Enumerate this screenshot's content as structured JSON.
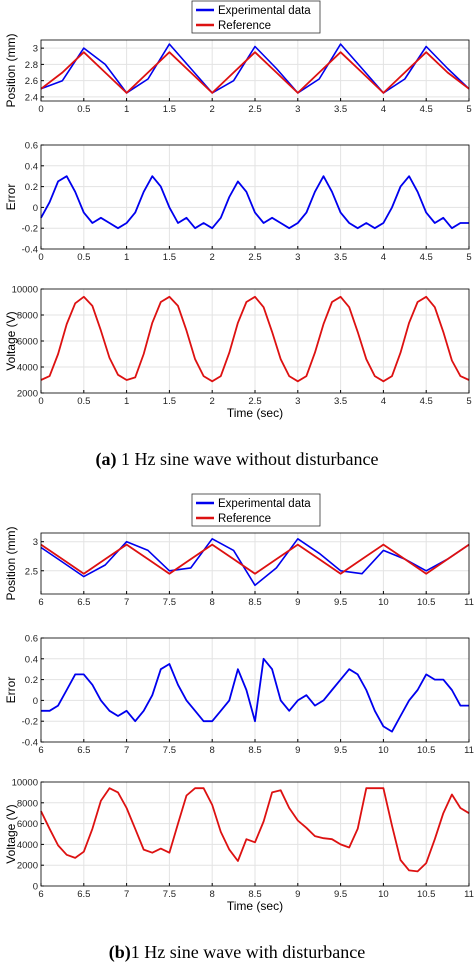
{
  "legend": {
    "experimental": "Experimental data",
    "reference": "Reference"
  },
  "colors": {
    "experimental": "#0000ee",
    "reference": "#dd1111",
    "grid": "#e3e3e3",
    "axis": "#000000"
  },
  "captions": {
    "a_label": "(a)",
    "a_text": " 1 Hz sine wave without disturbance",
    "b_label": "(b)",
    "b_text": "1 Hz sine wave with disturbance"
  },
  "chart_data": [
    {
      "type": "line",
      "panel": "a-position",
      "xlabel": "",
      "ylabel": "Position (mm)",
      "xlim": [
        0,
        5
      ],
      "ylim": [
        2.35,
        3.1
      ],
      "xticks": [
        "0",
        "0.5",
        "1",
        "1.5",
        "2",
        "2.5",
        "3",
        "3.5",
        "4",
        "4.5",
        "5"
      ],
      "yticks": [
        "2.4",
        "2.6",
        "2.8",
        "3"
      ],
      "series": [
        {
          "name": "Experimental data",
          "x": [
            0,
            0.25,
            0.5,
            0.75,
            1,
            1.25,
            1.5,
            1.75,
            2,
            2.25,
            2.5,
            2.75,
            3,
            3.25,
            3.5,
            3.75,
            4,
            4.25,
            4.5,
            4.75,
            5
          ],
          "values": [
            2.5,
            2.6,
            3.0,
            2.8,
            2.45,
            2.62,
            3.05,
            2.75,
            2.45,
            2.6,
            3.02,
            2.75,
            2.45,
            2.62,
            3.05,
            2.75,
            2.45,
            2.62,
            3.02,
            2.75,
            2.5
          ]
        },
        {
          "name": "Reference",
          "x": [
            0,
            0.25,
            0.5,
            0.75,
            1,
            1.25,
            1.5,
            1.75,
            2,
            2.25,
            2.5,
            2.75,
            3,
            3.25,
            3.5,
            3.75,
            4,
            4.25,
            4.5,
            4.75,
            5
          ],
          "values": [
            2.5,
            2.7,
            2.95,
            2.7,
            2.45,
            2.7,
            2.95,
            2.7,
            2.45,
            2.7,
            2.95,
            2.7,
            2.45,
            2.7,
            2.95,
            2.7,
            2.45,
            2.7,
            2.95,
            2.7,
            2.5
          ]
        }
      ]
    },
    {
      "type": "line",
      "panel": "a-error",
      "xlabel": "",
      "ylabel": "Error",
      "xlim": [
        0,
        5
      ],
      "ylim": [
        -0.4,
        0.6
      ],
      "xticks": [
        "0",
        "0.5",
        "1",
        "1.5",
        "2",
        "2.5",
        "3",
        "3.5",
        "4",
        "4.5",
        "5"
      ],
      "yticks": [
        "-0.4",
        "-0.2",
        "0",
        "0.2",
        "0.4",
        "0.6"
      ],
      "series": [
        {
          "name": "Error",
          "x": [
            0,
            0.1,
            0.2,
            0.3,
            0.4,
            0.5,
            0.6,
            0.7,
            0.8,
            0.9,
            1,
            1.1,
            1.2,
            1.3,
            1.4,
            1.5,
            1.6,
            1.7,
            1.8,
            1.9,
            2,
            2.1,
            2.2,
            2.3,
            2.4,
            2.5,
            2.6,
            2.7,
            2.8,
            2.9,
            3,
            3.1,
            3.2,
            3.3,
            3.4,
            3.5,
            3.6,
            3.7,
            3.8,
            3.9,
            4,
            4.1,
            4.2,
            4.3,
            4.4,
            4.5,
            4.6,
            4.7,
            4.8,
            4.9,
            5
          ],
          "values": [
            -0.1,
            0.05,
            0.25,
            0.3,
            0.15,
            -0.05,
            -0.15,
            -0.1,
            -0.15,
            -0.2,
            -0.15,
            -0.05,
            0.15,
            0.3,
            0.2,
            0.0,
            -0.15,
            -0.1,
            -0.2,
            -0.15,
            -0.2,
            -0.1,
            0.1,
            0.25,
            0.15,
            -0.05,
            -0.15,
            -0.1,
            -0.15,
            -0.2,
            -0.15,
            -0.05,
            0.15,
            0.3,
            0.15,
            -0.05,
            -0.15,
            -0.2,
            -0.15,
            -0.2,
            -0.15,
            0.0,
            0.2,
            0.3,
            0.15,
            -0.05,
            -0.15,
            -0.1,
            -0.2,
            -0.15,
            -0.15
          ]
        }
      ]
    },
    {
      "type": "line",
      "panel": "a-voltage",
      "xlabel": "Time (sec)",
      "ylabel": "Voltage (V)",
      "xlim": [
        0,
        5
      ],
      "ylim": [
        2000,
        10000
      ],
      "xticks": [
        "0",
        "0.5",
        "1",
        "1.5",
        "2",
        "2.5",
        "3",
        "3.5",
        "4",
        "4.5",
        "5"
      ],
      "yticks": [
        "2000",
        "4000",
        "6000",
        "8000",
        "10000"
      ],
      "series": [
        {
          "name": "Voltage",
          "x": [
            0,
            0.1,
            0.2,
            0.3,
            0.4,
            0.5,
            0.6,
            0.7,
            0.8,
            0.9,
            1,
            1.1,
            1.2,
            1.3,
            1.4,
            1.5,
            1.6,
            1.7,
            1.8,
            1.9,
            2,
            2.1,
            2.2,
            2.3,
            2.4,
            2.5,
            2.6,
            2.7,
            2.8,
            2.9,
            3,
            3.1,
            3.2,
            3.3,
            3.4,
            3.5,
            3.6,
            3.7,
            3.8,
            3.9,
            4,
            4.1,
            4.2,
            4.3,
            4.4,
            4.5,
            4.6,
            4.7,
            4.8,
            4.9,
            5
          ],
          "values": [
            3000,
            3300,
            5000,
            7300,
            8900,
            9400,
            8700,
            6800,
            4700,
            3400,
            3000,
            3200,
            5000,
            7400,
            9000,
            9400,
            8700,
            6800,
            4600,
            3300,
            2900,
            3300,
            5100,
            7400,
            9000,
            9400,
            8600,
            6700,
            4600,
            3300,
            2900,
            3300,
            5100,
            7300,
            9000,
            9400,
            8600,
            6700,
            4600,
            3300,
            2900,
            3300,
            5100,
            7400,
            9000,
            9400,
            8600,
            6700,
            4500,
            3300,
            3000
          ]
        }
      ]
    },
    {
      "type": "line",
      "panel": "b-position",
      "xlabel": "",
      "ylabel": "Position (mm)",
      "xlim": [
        6,
        11
      ],
      "ylim": [
        2.1,
        3.15
      ],
      "xticks": [
        "6",
        "6.5",
        "7",
        "7.5",
        "8",
        "8.5",
        "9",
        "9.5",
        "10",
        "10.5",
        "11"
      ],
      "yticks": [
        "2.5",
        "3"
      ],
      "series": [
        {
          "name": "Experimental data",
          "x": [
            6,
            6.25,
            6.5,
            6.75,
            7,
            7.25,
            7.5,
            7.75,
            8,
            8.25,
            8.5,
            8.75,
            9,
            9.25,
            9.5,
            9.75,
            10,
            10.25,
            10.5,
            10.75,
            11
          ],
          "values": [
            2.9,
            2.65,
            2.4,
            2.6,
            3.0,
            2.85,
            2.5,
            2.55,
            3.05,
            2.85,
            2.25,
            2.55,
            3.05,
            2.8,
            2.5,
            2.45,
            2.85,
            2.7,
            2.5,
            2.7,
            2.95
          ]
        },
        {
          "name": "Reference",
          "x": [
            6,
            6.25,
            6.5,
            6.75,
            7,
            7.25,
            7.5,
            7.75,
            8,
            8.25,
            8.5,
            8.75,
            9,
            9.25,
            9.5,
            9.75,
            10,
            10.25,
            10.5,
            10.75,
            11
          ],
          "values": [
            2.95,
            2.7,
            2.45,
            2.7,
            2.95,
            2.7,
            2.45,
            2.7,
            2.95,
            2.7,
            2.45,
            2.7,
            2.95,
            2.7,
            2.45,
            2.7,
            2.95,
            2.7,
            2.45,
            2.7,
            2.95
          ]
        }
      ]
    },
    {
      "type": "line",
      "panel": "b-error",
      "xlabel": "",
      "ylabel": "Error",
      "xlim": [
        6,
        11
      ],
      "ylim": [
        -0.4,
        0.6
      ],
      "xticks": [
        "6",
        "6.5",
        "7",
        "7.5",
        "8",
        "8.5",
        "9",
        "9.5",
        "10",
        "10.5",
        "11"
      ],
      "yticks": [
        "-0.4",
        "-0.2",
        "0",
        "0.2",
        "0.4",
        "0.6"
      ],
      "series": [
        {
          "name": "Error",
          "x": [
            6,
            6.1,
            6.2,
            6.3,
            6.4,
            6.5,
            6.6,
            6.7,
            6.8,
            6.9,
            7,
            7.1,
            7.2,
            7.3,
            7.4,
            7.5,
            7.6,
            7.7,
            7.8,
            7.9,
            8,
            8.1,
            8.2,
            8.3,
            8.4,
            8.5,
            8.6,
            8.7,
            8.8,
            8.9,
            9,
            9.1,
            9.2,
            9.3,
            9.4,
            9.5,
            9.6,
            9.7,
            9.8,
            9.9,
            10,
            10.1,
            10.2,
            10.3,
            10.4,
            10.5,
            10.6,
            10.7,
            10.8,
            10.9,
            11
          ],
          "values": [
            -0.1,
            -0.1,
            -0.05,
            0.1,
            0.25,
            0.25,
            0.15,
            0.0,
            -0.1,
            -0.15,
            -0.1,
            -0.2,
            -0.1,
            0.05,
            0.3,
            0.35,
            0.15,
            0.0,
            -0.1,
            -0.2,
            -0.2,
            -0.1,
            0.0,
            0.3,
            0.1,
            -0.2,
            0.4,
            0.3,
            0.0,
            -0.1,
            0.0,
            0.05,
            -0.05,
            0.0,
            0.1,
            0.2,
            0.3,
            0.25,
            0.1,
            -0.1,
            -0.25,
            -0.3,
            -0.15,
            0.0,
            0.1,
            0.25,
            0.2,
            0.2,
            0.1,
            -0.05,
            -0.05
          ]
        }
      ]
    },
    {
      "type": "line",
      "panel": "b-voltage",
      "xlabel": "Time (sec)",
      "ylabel": "Voltage (V)",
      "xlim": [
        6,
        11
      ],
      "ylim": [
        0,
        10000
      ],
      "xticks": [
        "6",
        "6.5",
        "7",
        "7.5",
        "8",
        "8.5",
        "9",
        "9.5",
        "10",
        "10.5",
        "11"
      ],
      "yticks": [
        "0",
        "2000",
        "4000",
        "6000",
        "8000",
        "10000"
      ],
      "series": [
        {
          "name": "Voltage",
          "x": [
            6,
            6.1,
            6.2,
            6.3,
            6.4,
            6.5,
            6.6,
            6.7,
            6.8,
            6.9,
            7,
            7.1,
            7.2,
            7.3,
            7.4,
            7.5,
            7.6,
            7.7,
            7.8,
            7.9,
            8,
            8.1,
            8.2,
            8.3,
            8.4,
            8.5,
            8.6,
            8.7,
            8.8,
            8.9,
            9,
            9.1,
            9.2,
            9.3,
            9.4,
            9.5,
            9.6,
            9.7,
            9.8,
            9.9,
            10,
            10.1,
            10.2,
            10.3,
            10.4,
            10.5,
            10.6,
            10.7,
            10.8,
            10.9,
            11
          ],
          "values": [
            7200,
            5500,
            3900,
            3000,
            2700,
            3300,
            5500,
            8200,
            9400,
            9000,
            7500,
            5500,
            3500,
            3200,
            3600,
            3200,
            6000,
            8700,
            9400,
            9400,
            7800,
            5200,
            3500,
            2400,
            4500,
            4200,
            6200,
            9000,
            9200,
            7500,
            6300,
            5600,
            4800,
            4600,
            4500,
            4000,
            3700,
            5500,
            9400,
            9400,
            9400,
            5800,
            2500,
            1500,
            1400,
            2200,
            4500,
            7000,
            8800,
            7500,
            7000
          ]
        }
      ]
    }
  ]
}
